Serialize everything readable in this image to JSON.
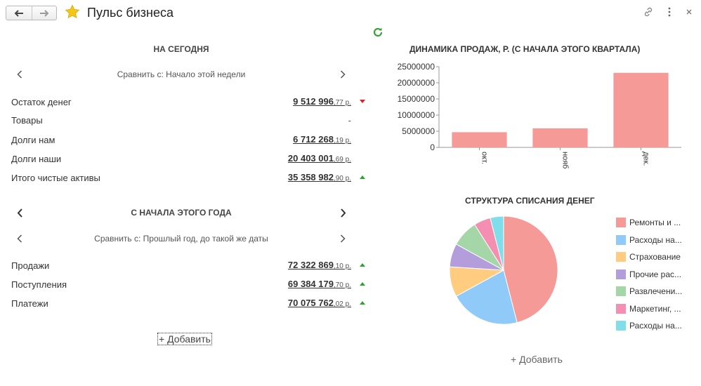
{
  "header": {
    "title": "Пульс бизнеса",
    "back_icon": "arrow-left-icon",
    "forward_icon": "arrow-right-icon",
    "favorite_icon": "star-icon",
    "link_icon": "link-icon",
    "more_icon": "more-vertical-icon",
    "close_icon": "close-icon",
    "star_color": "#f5c518"
  },
  "today": {
    "title": "НА СЕГОДНЯ",
    "compare": "Сравнить с: Начало этой недели",
    "rows": [
      {
        "label": "Остаток денег",
        "main": "9 512 996",
        "frac": ",77 р.",
        "trend": "down"
      },
      {
        "label": "Товары",
        "value": "-"
      },
      {
        "label": "Долги нам",
        "main": "6 712 268",
        "frac": ",19 р."
      },
      {
        "label": "Долги наши",
        "main": "20 403 001",
        "frac": ",69 р."
      },
      {
        "label": "Итого чистые активы",
        "main": "35 358 982",
        "frac": ",90 р.",
        "trend": "up"
      }
    ]
  },
  "year": {
    "title": "С НАЧАЛА ЭТОГО ГОДА",
    "compare": "Сравнить с: Прошлый год, до такой же даты",
    "rows": [
      {
        "label": "Продажи",
        "main": "72 322 869",
        "frac": ",10 р.",
        "trend": "up"
      },
      {
        "label": "Поступления",
        "main": "69 384 179",
        "frac": ",70 р.",
        "trend": "up"
      },
      {
        "label": "Платежи",
        "main": "70 075 762",
        "frac": ",02 р.",
        "trend": "up"
      }
    ]
  },
  "add_left": "+ Добавить",
  "add_right": "+ Добавить",
  "colors": {
    "trend_up": "#2aa52a",
    "trend_down": "#e02020",
    "refresh": "#3aa03a"
  },
  "chart_data": [
    {
      "type": "bar",
      "title": "ДИНАМИКА ПРОДАЖ, Р. (С НАЧАЛА ЭТОГО КВАРТАЛА)",
      "categories": [
        "окт.",
        "нояб",
        "дек."
      ],
      "values": [
        4700000,
        5900000,
        23100000
      ],
      "yticks": [
        "25000000",
        "20000000",
        "15000000",
        "10000000",
        "5000000",
        "0"
      ],
      "ylim": [
        0,
        25000000
      ],
      "color": "#f59a96",
      "grid": false
    },
    {
      "type": "pie",
      "title": "СТРУКТУРА СПИСАНИЯ ДЕНЕГ",
      "legend_position": "right",
      "slices": [
        {
          "name": "Ремонты и ...",
          "value": 46,
          "color": "#f59a96"
        },
        {
          "name": "Расходы на...",
          "value": 21,
          "color": "#90caf9"
        },
        {
          "name": "Страхование",
          "value": 9,
          "color": "#ffcc80"
        },
        {
          "name": "Прочие рас...",
          "value": 7,
          "color": "#b39ddb"
        },
        {
          "name": "Развлечени...",
          "value": 8,
          "color": "#a5d6a7"
        },
        {
          "name": "Маркетинг, ...",
          "value": 5,
          "color": "#f48fb1"
        },
        {
          "name": "Расходы на...",
          "value": 4,
          "color": "#80deea"
        }
      ]
    }
  ]
}
